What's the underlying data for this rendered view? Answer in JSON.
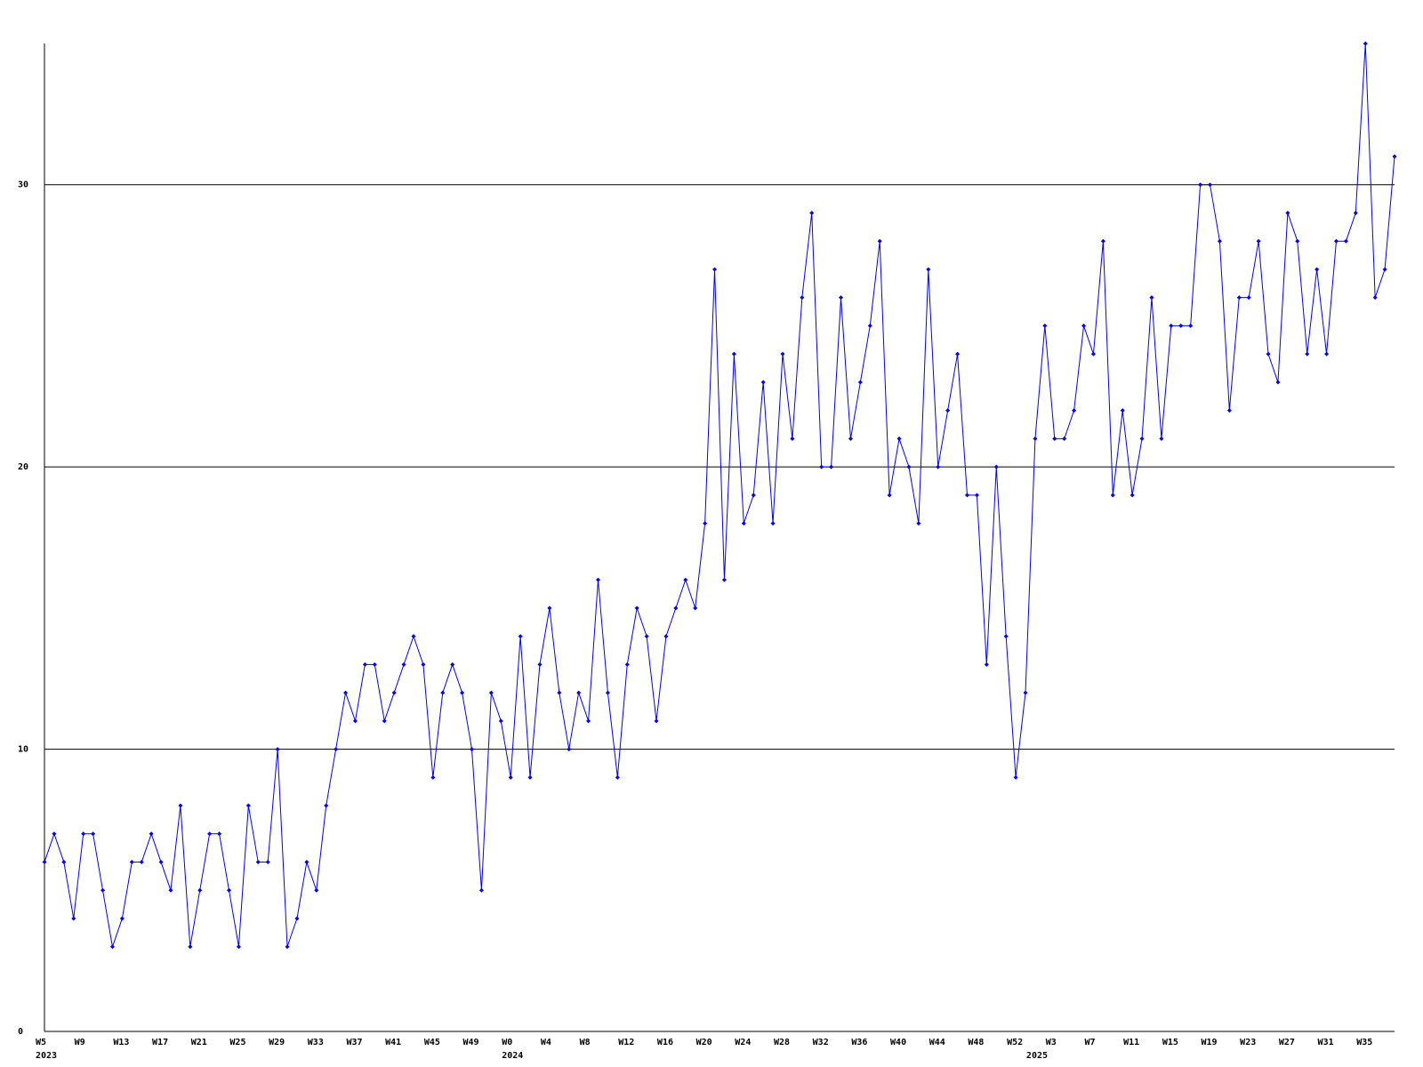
{
  "chart_data": {
    "type": "line",
    "color": "#0000ff",
    "categories": [
      "W5",
      null,
      null,
      null,
      "W9",
      null,
      null,
      null,
      "W13",
      null,
      null,
      null,
      "W17",
      null,
      null,
      null,
      "W21",
      null,
      null,
      null,
      "W25",
      null,
      null,
      null,
      "W29",
      null,
      null,
      null,
      "W33",
      null,
      null,
      null,
      "W37",
      null,
      null,
      null,
      "W41",
      null,
      null,
      null,
      "W45",
      null,
      null,
      null,
      "W49",
      null,
      null,
      null,
      "W0",
      null,
      null,
      null,
      "W4",
      null,
      null,
      null,
      "W8",
      null,
      null,
      null,
      "W12",
      null,
      null,
      null,
      "W16",
      null,
      null,
      null,
      "W20",
      null,
      null,
      null,
      "W24",
      null,
      null,
      null,
      "W28",
      null,
      null,
      null,
      "W32",
      null,
      null,
      null,
      "W36",
      null,
      null,
      null,
      "W40",
      null,
      null,
      null,
      "W44",
      null,
      null,
      null,
      "W48",
      null,
      null,
      null,
      "W52",
      null,
      null,
      null,
      "W3",
      null,
      null,
      null,
      "W7",
      null,
      null,
      null,
      "W11",
      null,
      null,
      null,
      "W15",
      null,
      null,
      null,
      "W19",
      null,
      null,
      null,
      "W23",
      null,
      null,
      null,
      "W27",
      null,
      null,
      null,
      "W31",
      null,
      null,
      null,
      "W35",
      null,
      null,
      null
    ],
    "years": [
      "2023",
      null,
      null,
      null,
      null,
      null,
      null,
      null,
      null,
      null,
      null,
      null,
      null,
      null,
      null,
      null,
      null,
      null,
      null,
      null,
      null,
      null,
      null,
      null,
      null,
      null,
      null,
      null,
      null,
      null,
      null,
      null,
      null,
      null,
      null,
      null,
      null,
      null,
      null,
      null,
      null,
      null,
      null,
      null,
      null,
      null,
      null,
      null,
      "2024",
      null,
      null,
      null,
      null,
      null,
      null,
      null,
      null,
      null,
      null,
      null,
      null,
      null,
      null,
      null,
      null,
      null,
      null,
      null,
      null,
      null,
      null,
      null,
      null,
      null,
      null,
      null,
      null,
      null,
      null,
      null,
      null,
      null,
      null,
      null,
      null,
      null,
      null,
      null,
      null,
      null,
      null,
      null,
      null,
      null,
      null,
      null,
      null,
      null,
      null,
      null,
      null,
      null,
      "2025",
      null,
      null,
      null,
      null,
      null,
      null,
      null,
      null,
      null,
      null,
      null,
      null,
      null,
      null,
      null,
      null,
      null,
      null,
      null,
      null,
      null,
      null,
      null,
      null,
      null,
      null,
      null,
      null,
      null,
      null,
      null,
      null,
      null,
      null,
      null,
      null,
      null
    ],
    "values": [
      6,
      7,
      6,
      4,
      7,
      7,
      5,
      3,
      4,
      6,
      6,
      7,
      6,
      5,
      8,
      3,
      5,
      7,
      7,
      5,
      3,
      8,
      6,
      6,
      10,
      3,
      4,
      6,
      5,
      8,
      10,
      12,
      11,
      13,
      13,
      11,
      12,
      13,
      14,
      13,
      9,
      12,
      13,
      12,
      10,
      5,
      12,
      11,
      9,
      14,
      9,
      13,
      15,
      12,
      10,
      12,
      11,
      16,
      12,
      9,
      13,
      15,
      14,
      11,
      14,
      15,
      16,
      15,
      18,
      27,
      16,
      24,
      18,
      19,
      23,
      18,
      24,
      21,
      26,
      29,
      20,
      20,
      26,
      21,
      23,
      25,
      28,
      19,
      21,
      20,
      18,
      27,
      20,
      22,
      24,
      19,
      19,
      13,
      20,
      14,
      9,
      12,
      21,
      25,
      21,
      21,
      22,
      25,
      24,
      28,
      19,
      22,
      19,
      21,
      26,
      21,
      25,
      25,
      25,
      30,
      30,
      28,
      22,
      26,
      26,
      28,
      24,
      23,
      29,
      28,
      24,
      27,
      24,
      28,
      28,
      29,
      35,
      26,
      27,
      31
    ],
    "ylim": [
      0,
      35
    ],
    "yticks": [
      0,
      10,
      20,
      30
    ],
    "grid": true
  }
}
